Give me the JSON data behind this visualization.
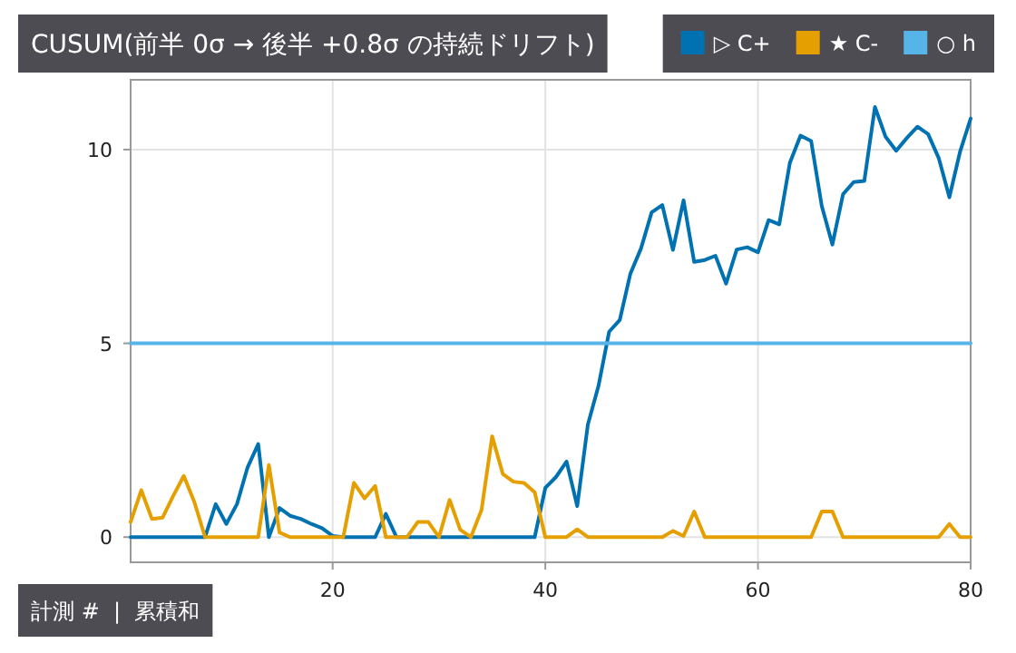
{
  "chart_data": {
    "type": "line",
    "title": "CUSUM(前半 0σ → 後半 +0.8σ の持続ドリフト)",
    "annotations": [
      "計測 #  |  累積和"
    ],
    "x": [
      1,
      2,
      3,
      4,
      5,
      6,
      7,
      8,
      9,
      10,
      11,
      12,
      13,
      14,
      15,
      16,
      17,
      18,
      19,
      20,
      21,
      22,
      23,
      24,
      25,
      26,
      27,
      28,
      29,
      30,
      31,
      32,
      33,
      34,
      35,
      36,
      37,
      38,
      39,
      40,
      41,
      42,
      43,
      44,
      45,
      46,
      47,
      48,
      49,
      50,
      51,
      52,
      53,
      54,
      55,
      56,
      57,
      58,
      59,
      60,
      61,
      62,
      63,
      64,
      65,
      66,
      67,
      68,
      69,
      70,
      71,
      72,
      73,
      74,
      75,
      76,
      77,
      78,
      79,
      80
    ],
    "series": [
      {
        "name": "▷ C+",
        "color": "#0072b2",
        "values": [
          0,
          0,
          0,
          0,
          0,
          0,
          0,
          0,
          0.85,
          0.34,
          0.85,
          1.8,
          2.4,
          0,
          0.75,
          0.55,
          0.47,
          0.34,
          0.23,
          0.03,
          0,
          0,
          0,
          0,
          0.6,
          0,
          0,
          0,
          0,
          0,
          0,
          0,
          0,
          0,
          0,
          0,
          0,
          0,
          0,
          1.27,
          1.55,
          1.95,
          0.8,
          2.9,
          3.9,
          5.3,
          5.6,
          6.8,
          7.45,
          8.38,
          8.57,
          7.41,
          8.69,
          7.1,
          7.15,
          7.26,
          6.54,
          7.42,
          7.48,
          7.35,
          8.18,
          8.07,
          9.66,
          10.36,
          10.22,
          8.54,
          7.55,
          8.85,
          9.16,
          9.19,
          11.1,
          10.33,
          9.97,
          10.3,
          10.59,
          10.4,
          9.78,
          8.77,
          9.94,
          10.8
        ]
      },
      {
        "name": "★ C-",
        "color": "#e69f00",
        "values": [
          0.39,
          1.21,
          0.47,
          0.5,
          1.06,
          1.58,
          0.9,
          0,
          0,
          0,
          0,
          0,
          0,
          1.86,
          0.12,
          0,
          0,
          0,
          0,
          0,
          0,
          1.4,
          1.0,
          1.32,
          0,
          0,
          0,
          0.39,
          0.39,
          0,
          0.96,
          0.19,
          0,
          0.7,
          2.6,
          1.63,
          1.43,
          1.4,
          1.16,
          0,
          0,
          0,
          0.2,
          0,
          0,
          0,
          0,
          0,
          0,
          0,
          0,
          0.16,
          0.03,
          0.66,
          0,
          0,
          0,
          0,
          0,
          0,
          0,
          0,
          0,
          0,
          0,
          0.66,
          0.66,
          0,
          0,
          0,
          0,
          0,
          0,
          0,
          0,
          0,
          0,
          0.34,
          0,
          0
        ]
      },
      {
        "name": "○ h",
        "color": "#56b4e9",
        "x": [
          1,
          80
        ],
        "values": [
          5,
          5
        ]
      }
    ],
    "xlim": [
      1,
      80
    ],
    "xticks": [
      20,
      40,
      60,
      80
    ],
    "ylim": [
      -0.65,
      11.8
    ],
    "yticks": [
      0,
      5,
      10
    ],
    "grid": true,
    "legend": "top right",
    "marker": "none",
    "line_style": "solid"
  }
}
